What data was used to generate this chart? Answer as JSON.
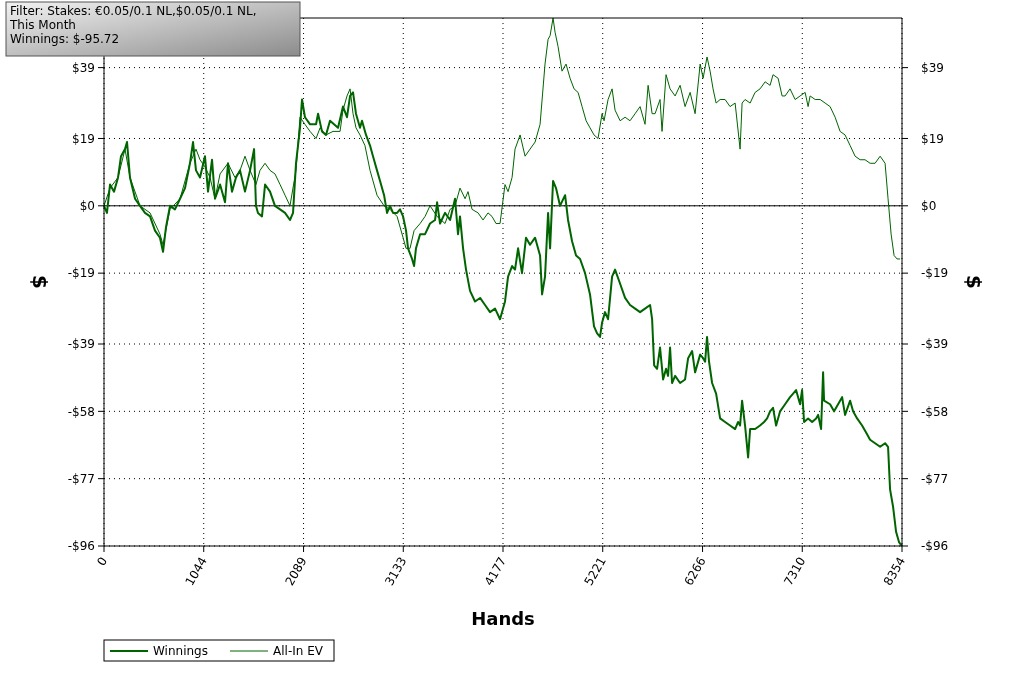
{
  "chart_data": {
    "type": "line",
    "xlabel": "Hands",
    "ylabel": "$",
    "y2label": "$",
    "annotations": [
      "Filter: Stakes: €0.05/0.1 NL,$0.05/0.1 NL,",
      "This Month",
      "Winnings: $-95.72"
    ],
    "xlim": [
      0,
      8354
    ],
    "xticks": [
      0,
      1044,
      2089,
      3133,
      4177,
      5221,
      6266,
      7310,
      8354
    ],
    "ylim": [
      -96,
      53
    ],
    "yticks": [
      {
        "value": -96,
        "label": "-$96"
      },
      {
        "value": -77,
        "label": "-$77"
      },
      {
        "value": -58,
        "label": "-$58"
      },
      {
        "value": -39,
        "label": "-$39"
      },
      {
        "value": -19,
        "label": "-$19"
      },
      {
        "value": 0,
        "label": "$0"
      },
      {
        "value": 19,
        "label": "$19"
      },
      {
        "value": 39,
        "label": "$39"
      }
    ],
    "y2lim": [
      -96,
      53
    ],
    "y2ticks": [
      {
        "value": -96,
        "label": "-$96"
      },
      {
        "value": -77,
        "label": "-$77"
      },
      {
        "value": -58,
        "label": "-$58"
      },
      {
        "value": -39,
        "label": "-$39"
      },
      {
        "value": -19,
        "label": "-$19"
      },
      {
        "value": 0,
        "label": "$0"
      },
      {
        "value": 19,
        "label": "$19"
      },
      {
        "value": 39,
        "label": "$39"
      }
    ],
    "grid": true,
    "legend": "bottom left",
    "line_style": "solid",
    "ref_lines": [
      {
        "axis": "y",
        "value": 0,
        "color": "#000000"
      }
    ],
    "series": [
      {
        "name": "Winnings",
        "color": "#006400",
        "x": [
          0,
          31,
          63,
          105,
          147,
          178,
          220,
          241,
          272,
          325,
          377,
          429,
          482,
          534,
          586,
          618,
          649,
          691,
          743,
          796,
          848,
          900,
          932,
          963,
          1005,
          1057,
          1089,
          1131,
          1162,
          1215,
          1267,
          1298,
          1340,
          1382,
          1424,
          1476,
          1529,
          1571,
          1591,
          1612,
          1654,
          1686,
          1738,
          1790,
          1843,
          1895,
          1947,
          1979,
          2010,
          2052,
          2073,
          2104,
          2157,
          2220,
          2241,
          2282,
          2324,
          2366,
          2408,
          2450,
          2502,
          2544,
          2576,
          2607,
          2638,
          2680,
          2701,
          2743,
          2785,
          2816,
          2858,
          2890,
          2932,
          2963,
          2994,
          3026,
          3068,
          3099,
          3131,
          3162,
          3183,
          3225,
          3246,
          3266,
          3309,
          3361,
          3413,
          3466,
          3487,
          3518,
          3570,
          3623,
          3675,
          3706,
          3727,
          3759,
          3790,
          3832,
          3884,
          3937,
          3989,
          4041,
          4094,
          4146,
          4198,
          4230,
          4272,
          4303,
          4335,
          4376,
          4418,
          4460,
          4513,
          4565,
          4586,
          4617,
          4649,
          4670,
          4701,
          4732,
          4774,
          4827,
          4858,
          4900,
          4942,
          4984,
          5036,
          5088,
          5130,
          5162,
          5193,
          5214,
          5245,
          5277,
          5319,
          5350,
          5403,
          5455,
          5507,
          5560,
          5612,
          5664,
          5717,
          5738,
          5759,
          5790,
          5821,
          5853,
          5884,
          5905,
          5926,
          5947,
          5979,
          6031,
          6083,
          6115,
          6157,
          6188,
          6241,
          6272,
          6293,
          6313,
          6334,
          6366,
          6408,
          6450,
          6502,
          6554,
          6607,
          6638,
          6659,
          6680,
          6711,
          6743,
          6764,
          6816,
          6868,
          6910,
          6942,
          6973,
          7004,
          7036,
          7078,
          7130,
          7182,
          7214,
          7245,
          7287,
          7308,
          7329,
          7371,
          7413,
          7455,
          7476,
          7507,
          7528,
          7538,
          7601,
          7643,
          7685,
          7727,
          7758,
          7811,
          7842,
          7884,
          7936,
          7978,
          8020,
          8072,
          8125,
          8177,
          8208,
          8229,
          8261,
          8292,
          8324,
          8354
        ],
        "values": [
          0,
          -2,
          6,
          4,
          8,
          14,
          16,
          18,
          8,
          2,
          0,
          -2,
          -3,
          -7,
          -9,
          -13,
          -6,
          0,
          -1,
          2,
          5,
          12,
          18,
          10,
          8,
          14,
          4,
          13,
          2,
          6,
          1,
          12,
          4,
          8,
          10,
          4,
          10,
          16,
          0,
          -2,
          -3,
          6,
          4,
          0,
          -1,
          -2,
          -4,
          -2,
          12,
          22,
          30,
          25,
          23,
          23,
          26,
          21,
          20,
          24,
          23,
          22,
          28,
          25,
          31,
          32,
          26,
          22,
          24,
          20,
          17,
          14,
          10,
          7,
          3,
          -2,
          0,
          -2,
          -2,
          -1,
          -3,
          -7,
          -12,
          -15,
          -17,
          -12,
          -8,
          -8,
          -5,
          -4,
          1,
          -5,
          -2,
          -4,
          2,
          -8,
          -3,
          -12,
          -18,
          -24,
          -27,
          -26,
          -28,
          -30,
          -29,
          -32,
          -27,
          -20,
          -17,
          -18,
          -12,
          -19,
          -9,
          -11,
          -9,
          -14,
          -25,
          -20,
          -2,
          -12,
          7,
          5,
          0,
          3,
          -4,
          -10,
          -14,
          -15,
          -19,
          -25,
          -34,
          -36,
          -37,
          -33,
          -30,
          -32,
          -20,
          -18,
          -22,
          -26,
          -28,
          -29,
          -30,
          -29,
          -28,
          -32,
          -45,
          -46,
          -40,
          -49,
          -46,
          -48,
          -40,
          -50,
          -48,
          -50,
          -49,
          -43,
          -41,
          -47,
          -42,
          -43,
          -44,
          -37,
          -44,
          -50,
          -53,
          -60,
          -61,
          -62,
          -63,
          -61,
          -62,
          -55,
          -62,
          -71,
          -63,
          -63,
          -62,
          -61,
          -60,
          -58,
          -57,
          -62,
          -58,
          -56,
          -54,
          -53,
          -52,
          -56,
          -52,
          -61,
          -60,
          -61,
          -60,
          -59,
          -63,
          -47,
          -55,
          -56,
          -58,
          -56,
          -54,
          -59,
          -55,
          -58,
          -60,
          -62,
          -64,
          -66,
          -67,
          -68,
          -67,
          -68,
          -80,
          -85,
          -92,
          -95,
          -96
        ]
      },
      {
        "name": "All-In EV",
        "color": "#006400",
        "x": [
          0,
          63,
          147,
          220,
          272,
          377,
          482,
          586,
          618,
          691,
          796,
          900,
          963,
          1005,
          1057,
          1110,
          1162,
          1215,
          1298,
          1371,
          1424,
          1476,
          1529,
          1591,
          1633,
          1686,
          1738,
          1790,
          1843,
          1895,
          1947,
          2010,
          2052,
          2104,
          2157,
          2220,
          2262,
          2324,
          2397,
          2471,
          2502,
          2544,
          2576,
          2607,
          2638,
          2680,
          2732,
          2785,
          2858,
          2932,
          2994,
          3068,
          3131,
          3162,
          3204,
          3246,
          3309,
          3361,
          3413,
          3487,
          3570,
          3623,
          3675,
          3727,
          3780,
          3811,
          3853,
          3916,
          3968,
          4020,
          4062,
          4104,
          4146,
          4198,
          4230,
          4272,
          4303,
          4356,
          4408,
          4460,
          4513,
          4565,
          4617,
          4649,
          4670,
          4701,
          4722,
          4753,
          4795,
          4837,
          4879,
          4921,
          4963,
          5005,
          5047,
          5088,
          5130,
          5172,
          5214,
          5235,
          5277,
          5319,
          5350,
          5403,
          5455,
          5507,
          5560,
          5612,
          5664,
          5696,
          5738,
          5769,
          5821,
          5842,
          5884,
          5926,
          5979,
          6031,
          6083,
          6136,
          6188,
          6241,
          6272,
          6313,
          6345,
          6376,
          6408,
          6450,
          6502,
          6554,
          6607,
          6659,
          6680,
          6711,
          6764,
          6816,
          6868,
          6921,
          6973,
          7004,
          7057,
          7099,
          7130,
          7182,
          7235,
          7287,
          7340,
          7371,
          7392,
          7445,
          7497,
          7549,
          7601,
          7654,
          7706,
          7758,
          7811,
          7863,
          7915,
          7967,
          8020,
          8072,
          8125,
          8177,
          8208,
          8240,
          8271,
          8302,
          8334
        ],
        "values": [
          0,
          5,
          8,
          16,
          8,
          0,
          -2,
          -8,
          -11,
          -1,
          2,
          12,
          16,
          13,
          11,
          8,
          2,
          9,
          12,
          8,
          10,
          14,
          10,
          6,
          10,
          12,
          10,
          9,
          6,
          3,
          0,
          10,
          25,
          23,
          21,
          19,
          22,
          20,
          21,
          21,
          27,
          31,
          33,
          26,
          22,
          20,
          17,
          10,
          3,
          0,
          -1,
          -3,
          -9,
          -12,
          -12,
          -7,
          -5,
          -3,
          0,
          -3,
          -5,
          -1,
          0,
          5,
          2,
          4,
          -1,
          -2,
          -4,
          -2,
          -3,
          -5,
          -5,
          6,
          4,
          8,
          16,
          20,
          14,
          16,
          18,
          23,
          40,
          47,
          48,
          53,
          49,
          45,
          38,
          40,
          36,
          33,
          32,
          28,
          24,
          22,
          20,
          19,
          26,
          24,
          30,
          33,
          27,
          24,
          25,
          24,
          26,
          28,
          23,
          34,
          26,
          26,
          30,
          21,
          37,
          33,
          31,
          34,
          28,
          32,
          26,
          40,
          36,
          42,
          38,
          33,
          29,
          30,
          30,
          28,
          29,
          16,
          29,
          30,
          29,
          32,
          33,
          35,
          34,
          37,
          36,
          31,
          31,
          33,
          30,
          31,
          32,
          28,
          31,
          30,
          30,
          29,
          28,
          25,
          21,
          20,
          17,
          14,
          13,
          13,
          12,
          12,
          14,
          12,
          2,
          -8,
          -14,
          -15,
          -15
        ]
      }
    ]
  }
}
